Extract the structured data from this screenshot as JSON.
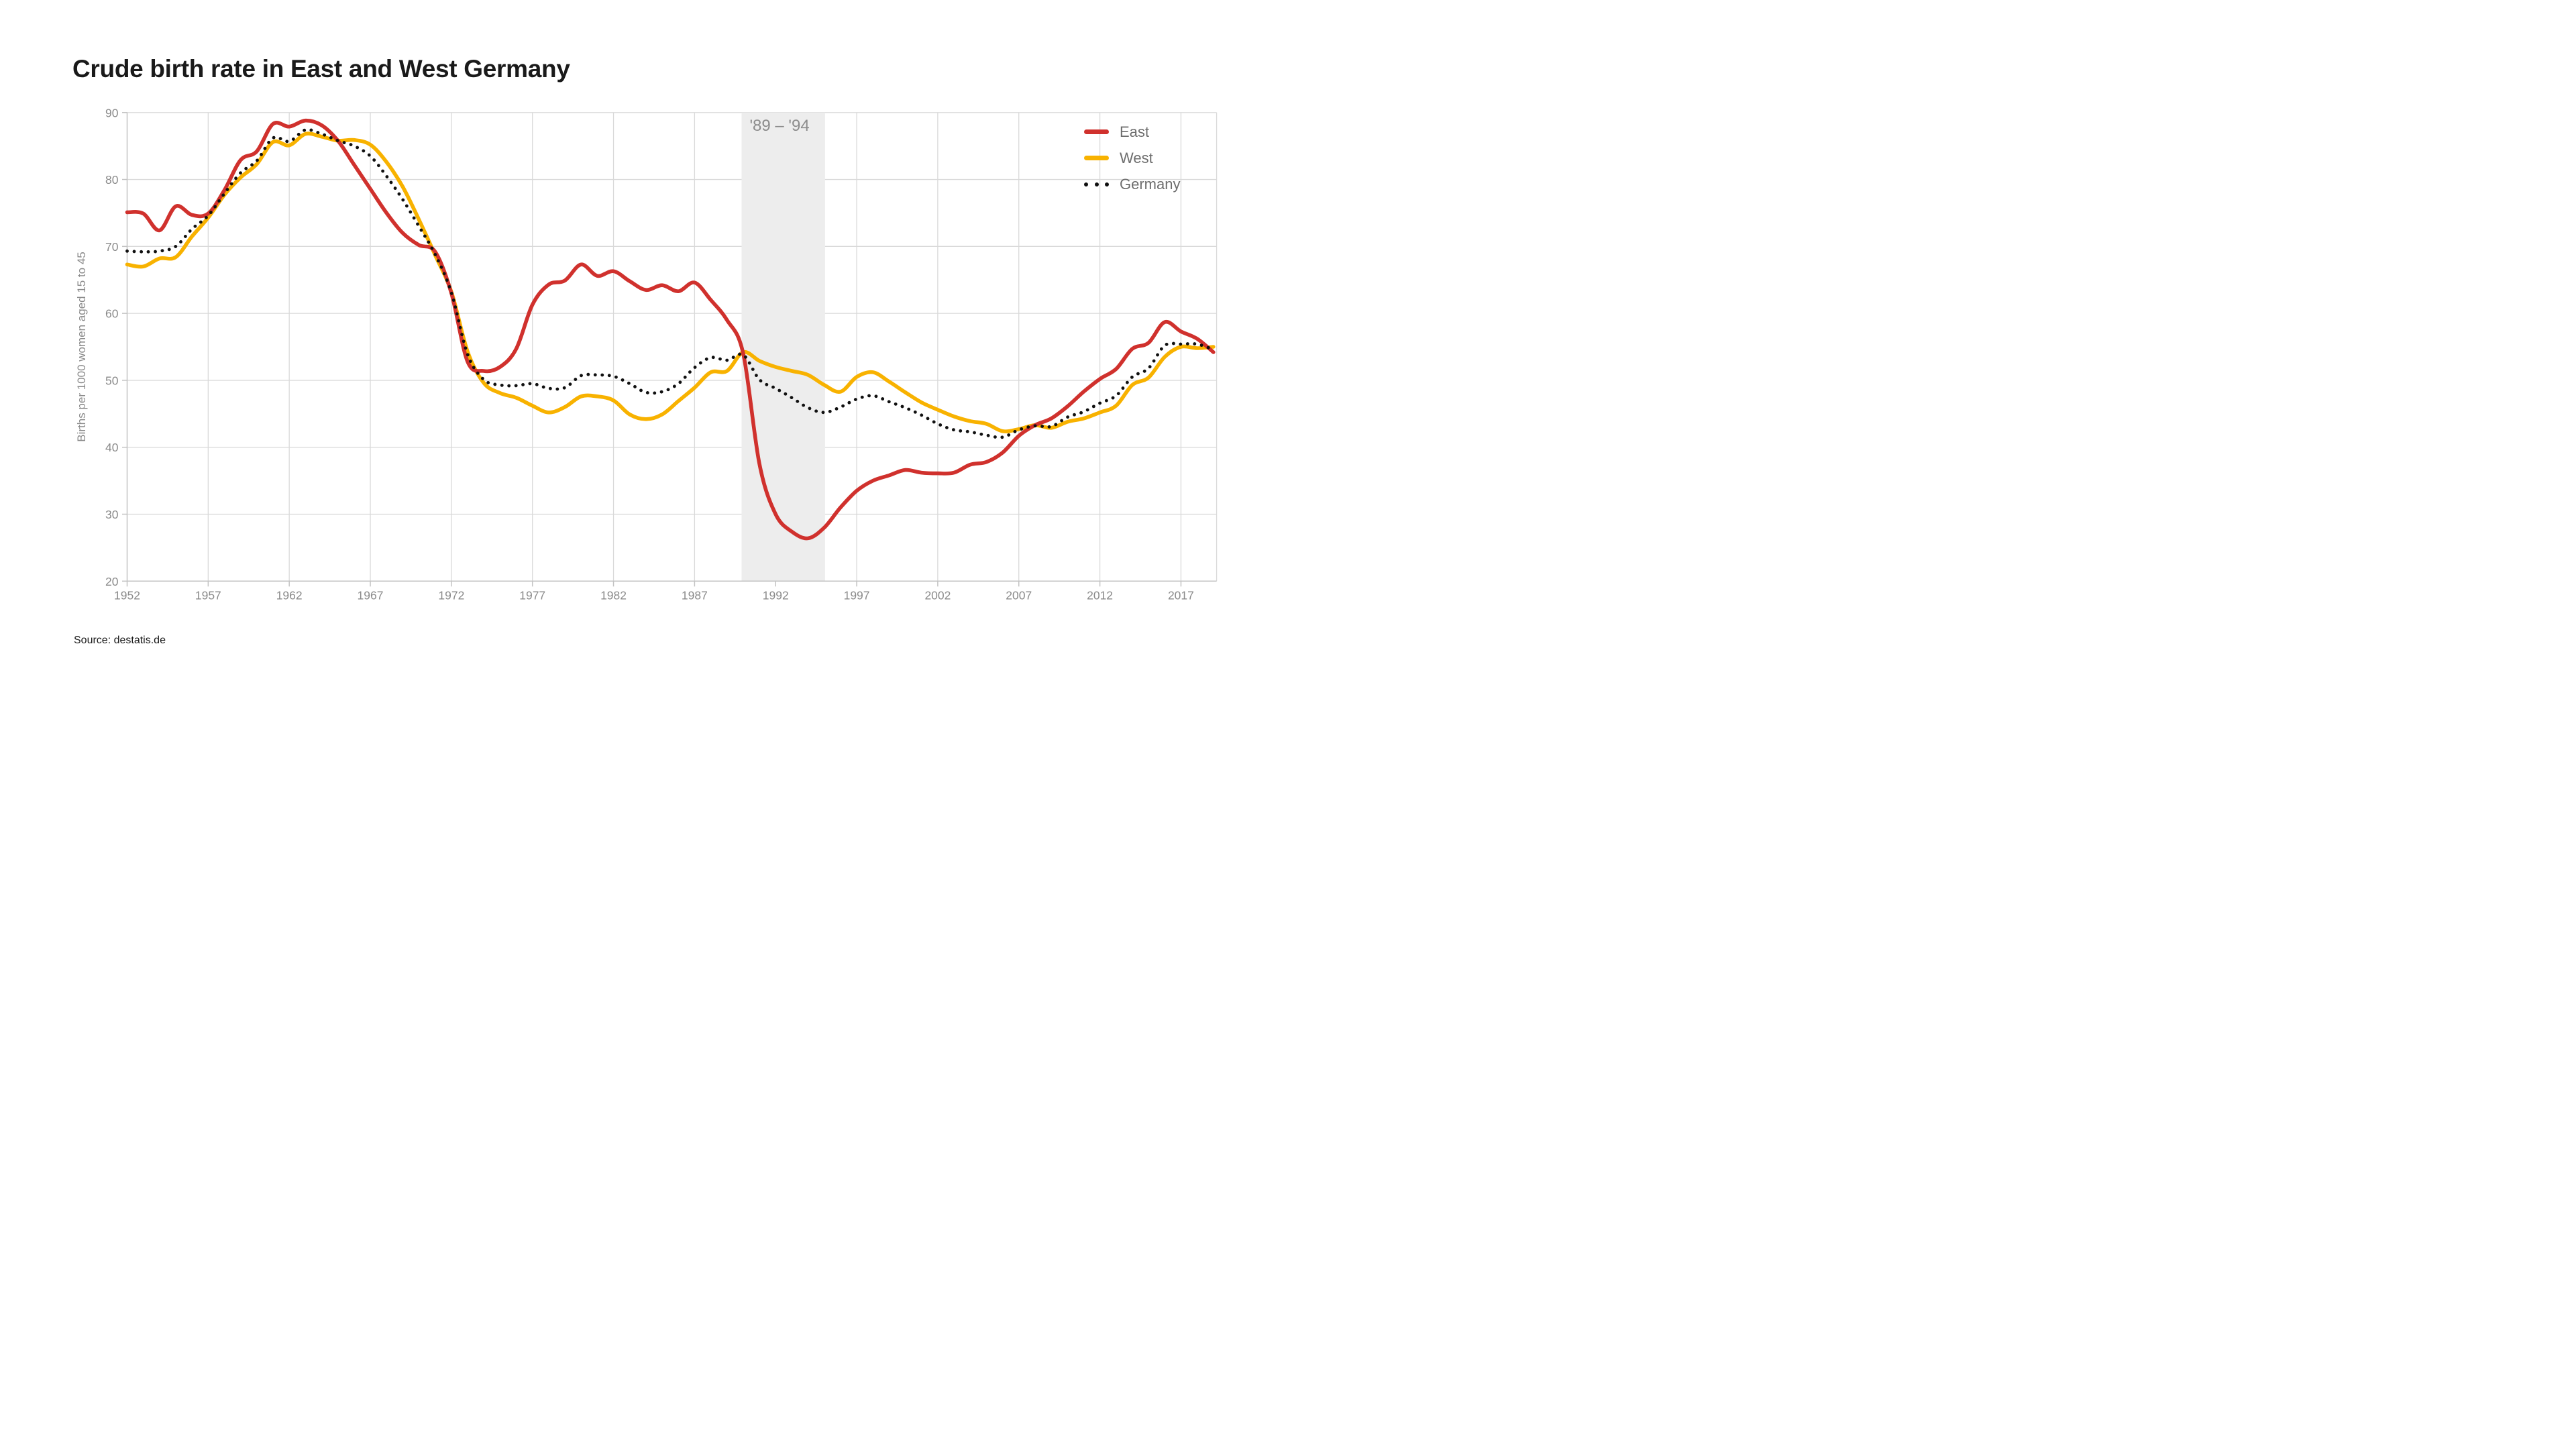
{
  "header": {
    "title": "Crude birth rate in East and West Germany"
  },
  "footer": {
    "source": "Source: destatis.de"
  },
  "legend": {
    "position": "top-right"
  },
  "colors": {
    "east": "#d0312d",
    "west": "#f8b200",
    "germany": "#101010",
    "band": "#ededed",
    "grid": "#d9d9d9",
    "axis": "#c3c3c3",
    "tick_text": "#8a8a8a"
  },
  "chart_data": {
    "type": "line",
    "title": "Crude birth rate in East and West Germany",
    "xlabel": "",
    "ylabel": "Births per 1000 women aged 15 to 45",
    "ylim": [
      20,
      90
    ],
    "xlim": [
      1952,
      2019.2
    ],
    "yticks": [
      20,
      30,
      40,
      50,
      60,
      70,
      80,
      90
    ],
    "xticks": [
      1952,
      1957,
      1962,
      1967,
      1972,
      1977,
      1982,
      1987,
      1992,
      1997,
      2002,
      2007,
      2012,
      2017
    ],
    "grid": true,
    "legend_position": "top-right",
    "band": {
      "label": "'89 – '94",
      "from": 1989.9,
      "to": 1995.05,
      "color": "#ededed"
    },
    "years": [
      1952,
      1953,
      1954,
      1955,
      1956,
      1957,
      1958,
      1959,
      1960,
      1961,
      1962,
      1963,
      1964,
      1965,
      1966,
      1967,
      1968,
      1969,
      1970,
      1971,
      1972,
      1973,
      1974,
      1975,
      1976,
      1977,
      1978,
      1979,
      1980,
      1981,
      1982,
      1983,
      1984,
      1985,
      1986,
      1987,
      1988,
      1989,
      1990,
      1991,
      1992,
      1993,
      1994,
      1995,
      1996,
      1997,
      1998,
      1999,
      2000,
      2001,
      2002,
      2003,
      2004,
      2005,
      2006,
      2007,
      2008,
      2009,
      2010,
      2011,
      2012,
      2013,
      2014,
      2015,
      2016,
      2017,
      2018,
      2019
    ],
    "series": [
      {
        "name": "East",
        "color": "#d0312d",
        "style": "solid",
        "values": [
          75.1,
          74.9,
          72.4,
          76,
          74.7,
          74.9,
          78.4,
          82.9,
          84.2,
          88.3,
          87.9,
          88.8,
          88.1,
          85.8,
          82.2,
          78.6,
          75,
          72,
          70.2,
          69.2,
          63,
          52.8,
          51.4,
          52,
          54.7,
          61.3,
          64.3,
          64.9,
          67.3,
          65.6,
          66.3,
          64.8,
          63.5,
          64.2,
          63.3,
          64.6,
          62,
          59,
          54,
          37.5,
          30,
          27.4,
          26.4,
          28,
          31,
          33.5,
          35,
          35.8,
          36.6,
          36.2,
          36.1,
          36.2,
          37.4,
          37.8,
          39.2,
          41.7,
          43.3,
          44.3,
          46.1,
          48.3,
          50.2,
          51.7,
          54.7,
          55.6,
          58.7,
          57.3,
          56.2,
          54.2
        ]
      },
      {
        "name": "West",
        "color": "#f8b200",
        "style": "solid",
        "values": [
          67.3,
          67,
          68.2,
          68.4,
          71.5,
          74.3,
          77.7,
          80.3,
          82.3,
          85.6,
          85.1,
          86.8,
          86.4,
          85.8,
          85.9,
          85.2,
          82.6,
          78.9,
          74,
          68.7,
          63.2,
          54.3,
          49.6,
          48.1,
          47.4,
          46.2,
          45.2,
          46,
          47.6,
          47.6,
          47,
          44.9,
          44.2,
          44.9,
          46.9,
          48.9,
          51.2,
          51.4,
          54.2,
          52.9,
          52,
          51.4,
          50.8,
          49.3,
          48.3,
          50.5,
          51.2,
          49.8,
          48.2,
          46.7,
          45.6,
          44.6,
          43.9,
          43.5,
          42.4,
          42.7,
          43.3,
          42.9,
          43.8,
          44.3,
          45.2,
          46.2,
          49.3,
          50.4,
          53.5,
          55,
          54.8,
          55
        ]
      },
      {
        "name": "Germany",
        "color": "#101010",
        "style": "dotted",
        "values": [
          69.3,
          69.2,
          69.3,
          70,
          72.6,
          74.6,
          77.9,
          81,
          82.8,
          86.2,
          85.7,
          87.4,
          86.8,
          85.8,
          85,
          83.5,
          80.5,
          77,
          73,
          68.8,
          63.1,
          53.9,
          50.1,
          49.3,
          49.2,
          49.5,
          48.8,
          48.9,
          50.7,
          50.8,
          50.6,
          49.5,
          48.2,
          48.3,
          49.5,
          51.9,
          53.4,
          53,
          53.8,
          50.1,
          48.8,
          47.4,
          45.9,
          45.2,
          46,
          47.2,
          47.7,
          46.8,
          45.9,
          44.8,
          43.5,
          42.6,
          42.3,
          41.8,
          41.5,
          42.6,
          43.2,
          43.1,
          44.5,
          45.3,
          46.6,
          47.7,
          50.5,
          51.8,
          55.2,
          55.4,
          55.4,
          54.6
        ]
      }
    ]
  }
}
